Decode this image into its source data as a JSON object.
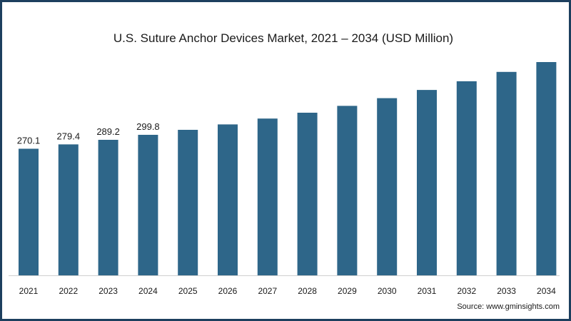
{
  "chart_data": {
    "type": "bar",
    "title": "U.S. Suture Anchor Devices Market, 2021 – 2034 (USD Million)",
    "xlabel": "",
    "ylabel": "",
    "categories": [
      "2021",
      "2022",
      "2023",
      "2024",
      "2025",
      "2026",
      "2027",
      "2028",
      "2029",
      "2030",
      "2031",
      "2032",
      "2033",
      "2034"
    ],
    "values": [
      270.1,
      279.4,
      289.2,
      299.8,
      310.5,
      322.0,
      334.5,
      347.0,
      361.5,
      378.0,
      395.5,
      414.0,
      434.0,
      455.0
    ],
    "data_labels": [
      "270.1",
      "279.4",
      "289.2",
      "299.8",
      "",
      "",
      "",
      "",
      "",
      "",
      "",
      "",
      "",
      ""
    ],
    "ylim": [
      0,
      455
    ],
    "bar_color": "#2e6689",
    "grid": false
  },
  "source": "Source: www.gminsights.com"
}
